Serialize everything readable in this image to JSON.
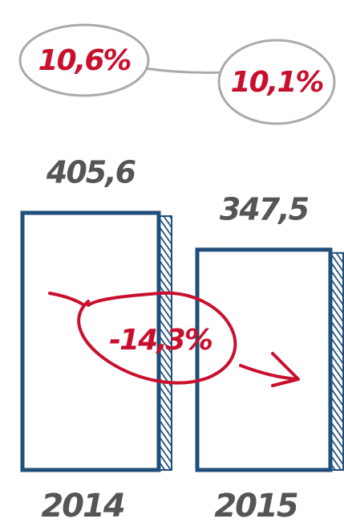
{
  "chart_data": {
    "type": "bar",
    "categories": [
      "2014",
      "2015"
    ],
    "values": [
      405.6,
      347.5
    ],
    "value_labels": [
      "405,6",
      "347,5"
    ],
    "color": "#1f4e79",
    "ylim": [
      0,
      410
    ],
    "annotations": [
      "10,6%",
      "10,1%",
      "-14,3%"
    ],
    "annotation_color": "#c8102e"
  }
}
